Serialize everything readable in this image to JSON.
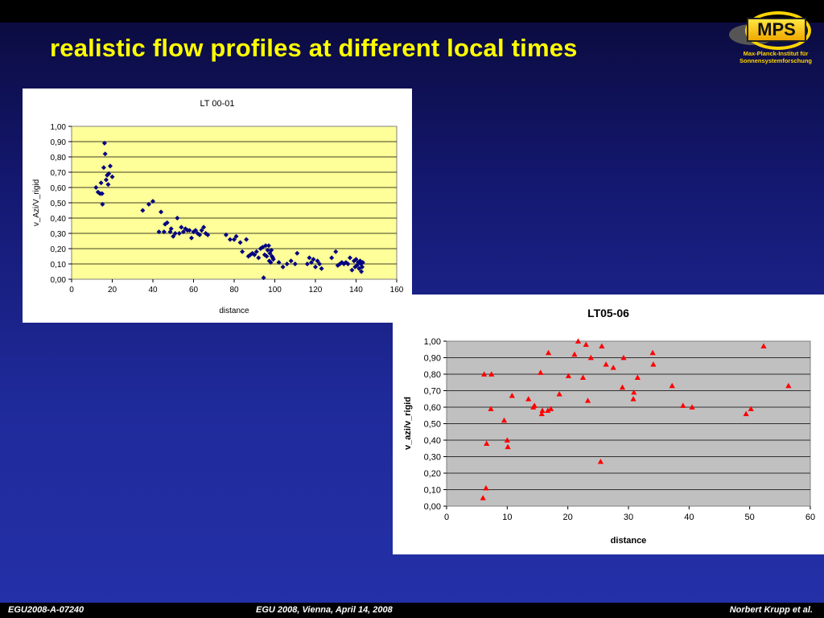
{
  "slide": {
    "title": "realistic flow profiles at different local times",
    "logo": {
      "word": "MPS",
      "line1": "Max-Planck-Institut für",
      "line2": "Sonnensystemforschung"
    },
    "footer": {
      "left": "EGU2008-A-07240",
      "center": "EGU 2008, Vienna, April 14, 2008",
      "right": "Norbert Krupp et al."
    },
    "colors": {
      "title": "#ffff00",
      "chart1_plot_bg": "#ffff99",
      "chart1_marker": "#000080",
      "chart2_plot_bg": "#c0c0c0",
      "chart2_marker": "#ff0000"
    }
  },
  "chart_data": [
    {
      "type": "scatter",
      "title": "LT 00-01",
      "xlabel": "distance",
      "ylabel": "v_Azi/V_rigid",
      "xlim": [
        0,
        160
      ],
      "ylim": [
        0,
        1
      ],
      "xticks": [
        "0",
        "20",
        "40",
        "60",
        "80",
        "100",
        "120",
        "140",
        "160"
      ],
      "yticks": [
        "0,00",
        "0,10",
        "0,20",
        "0,30",
        "0,40",
        "0,50",
        "0,60",
        "0,70",
        "0,80",
        "0,90",
        "1,00"
      ],
      "grid": "horizontal",
      "legend": "none",
      "marker": "diamond",
      "points": [
        [
          12,
          0.6
        ],
        [
          13,
          0.57
        ],
        [
          14,
          0.56
        ],
        [
          14.5,
          0.63
        ],
        [
          15,
          0.56
        ],
        [
          15.2,
          0.49
        ],
        [
          15.8,
          0.73
        ],
        [
          16.2,
          0.89
        ],
        [
          16.5,
          0.82
        ],
        [
          17,
          0.65
        ],
        [
          17.5,
          0.68
        ],
        [
          18,
          0.62
        ],
        [
          18.3,
          0.69
        ],
        [
          19,
          0.74
        ],
        [
          20,
          0.67
        ],
        [
          35,
          0.45
        ],
        [
          38,
          0.49
        ],
        [
          40,
          0.51
        ],
        [
          43,
          0.31
        ],
        [
          44,
          0.44
        ],
        [
          45.5,
          0.31
        ],
        [
          46,
          0.36
        ],
        [
          47,
          0.37
        ],
        [
          48.5,
          0.31
        ],
        [
          49,
          0.33
        ],
        [
          50,
          0.28
        ],
        [
          51,
          0.3
        ],
        [
          52,
          0.4
        ],
        [
          53,
          0.3
        ],
        [
          54,
          0.34
        ],
        [
          55,
          0.31
        ],
        [
          56,
          0.33
        ],
        [
          57,
          0.32
        ],
        [
          58,
          0.32
        ],
        [
          59,
          0.27
        ],
        [
          60,
          0.31
        ],
        [
          61,
          0.32
        ],
        [
          62,
          0.3
        ],
        [
          63,
          0.29
        ],
        [
          64,
          0.32
        ],
        [
          65,
          0.34
        ],
        [
          66,
          0.3
        ],
        [
          67,
          0.29
        ],
        [
          76,
          0.29
        ],
        [
          78,
          0.26
        ],
        [
          80,
          0.26
        ],
        [
          81,
          0.28
        ],
        [
          83,
          0.24
        ],
        [
          84,
          0.18
        ],
        [
          86,
          0.26
        ],
        [
          87,
          0.15
        ],
        [
          88,
          0.16
        ],
        [
          89,
          0.17
        ],
        [
          90,
          0.16
        ],
        [
          91,
          0.18
        ],
        [
          92,
          0.14
        ],
        [
          93,
          0.2
        ],
        [
          94,
          0.21
        ],
        [
          94.5,
          0.01
        ],
        [
          95,
          0.16
        ],
        [
          95.5,
          0.22
        ],
        [
          96,
          0.15
        ],
        [
          96.5,
          0.19
        ],
        [
          97,
          0.22
        ],
        [
          97.3,
          0.12
        ],
        [
          97.6,
          0.17
        ],
        [
          98,
          0.11
        ],
        [
          98.3,
          0.19
        ],
        [
          98.6,
          0.15
        ],
        [
          99,
          0.14
        ],
        [
          99.3,
          0.13
        ],
        [
          102,
          0.11
        ],
        [
          104,
          0.08
        ],
        [
          106,
          0.1
        ],
        [
          108,
          0.12
        ],
        [
          110,
          0.1
        ],
        [
          111,
          0.17
        ],
        [
          116,
          0.1
        ],
        [
          117,
          0.14
        ],
        [
          118,
          0.11
        ],
        [
          119,
          0.13
        ],
        [
          120,
          0.08
        ],
        [
          121,
          0.12
        ],
        [
          122,
          0.1
        ],
        [
          123,
          0.07
        ],
        [
          128,
          0.14
        ],
        [
          130,
          0.18
        ],
        [
          131,
          0.09
        ],
        [
          132,
          0.1
        ],
        [
          133,
          0.11
        ],
        [
          134,
          0.1
        ],
        [
          135,
          0.11
        ],
        [
          136,
          0.1
        ],
        [
          137,
          0.14
        ],
        [
          138,
          0.06
        ],
        [
          139,
          0.12
        ],
        [
          139.5,
          0.08
        ],
        [
          140,
          0.13
        ],
        [
          140.5,
          0.09
        ],
        [
          141,
          0.11
        ],
        [
          141.5,
          0.07
        ],
        [
          142,
          0.12
        ],
        [
          142.3,
          0.1
        ],
        [
          142.6,
          0.05
        ],
        [
          143,
          0.08
        ],
        [
          143.3,
          0.11
        ]
      ]
    },
    {
      "type": "scatter",
      "title": "LT05-06",
      "xlabel": "distance",
      "ylabel": "v_azi/v_rigid",
      "xlim": [
        0,
        60
      ],
      "ylim": [
        0,
        1
      ],
      "xticks": [
        "0",
        "10",
        "20",
        "30",
        "40",
        "50",
        "60"
      ],
      "yticks": [
        "0,00",
        "0,10",
        "0,20",
        "0,30",
        "0,40",
        "0,50",
        "0,60",
        "0,70",
        "0,80",
        "0,90",
        "1,00"
      ],
      "grid": "horizontal",
      "legend": "none",
      "marker": "triangle",
      "points": [
        [
          6,
          0.05
        ],
        [
          6.2,
          0.8
        ],
        [
          6.5,
          0.11
        ],
        [
          6.6,
          0.38
        ],
        [
          7.3,
          0.59
        ],
        [
          7.4,
          0.8
        ],
        [
          9.5,
          0.52
        ],
        [
          10,
          0.4
        ],
        [
          10.1,
          0.36
        ],
        [
          10.8,
          0.67
        ],
        [
          13.5,
          0.65
        ],
        [
          14.3,
          0.6
        ],
        [
          14.5,
          0.61
        ],
        [
          15.5,
          0.81
        ],
        [
          15.7,
          0.56
        ],
        [
          15.8,
          0.58
        ],
        [
          16.7,
          0.58
        ],
        [
          16.8,
          0.93
        ],
        [
          17.2,
          0.59
        ],
        [
          18.6,
          0.68
        ],
        [
          20.1,
          0.79
        ],
        [
          21.1,
          0.92
        ],
        [
          21.7,
          1.0
        ],
        [
          22.5,
          0.78
        ],
        [
          23,
          0.98
        ],
        [
          23.3,
          0.64
        ],
        [
          23.8,
          0.9
        ],
        [
          25.4,
          0.27
        ],
        [
          25.6,
          0.97
        ],
        [
          26.3,
          0.86
        ],
        [
          27.5,
          0.84
        ],
        [
          29,
          0.72
        ],
        [
          29.2,
          0.9
        ],
        [
          30.8,
          0.65
        ],
        [
          30.9,
          0.69
        ],
        [
          31.5,
          0.78
        ],
        [
          34,
          0.93
        ],
        [
          34.1,
          0.86
        ],
        [
          37.2,
          0.73
        ],
        [
          39,
          0.61
        ],
        [
          40.5,
          0.6
        ],
        [
          49.4,
          0.56
        ],
        [
          50.2,
          0.59
        ],
        [
          52.3,
          0.97
        ],
        [
          56.4,
          0.73
        ]
      ]
    }
  ]
}
